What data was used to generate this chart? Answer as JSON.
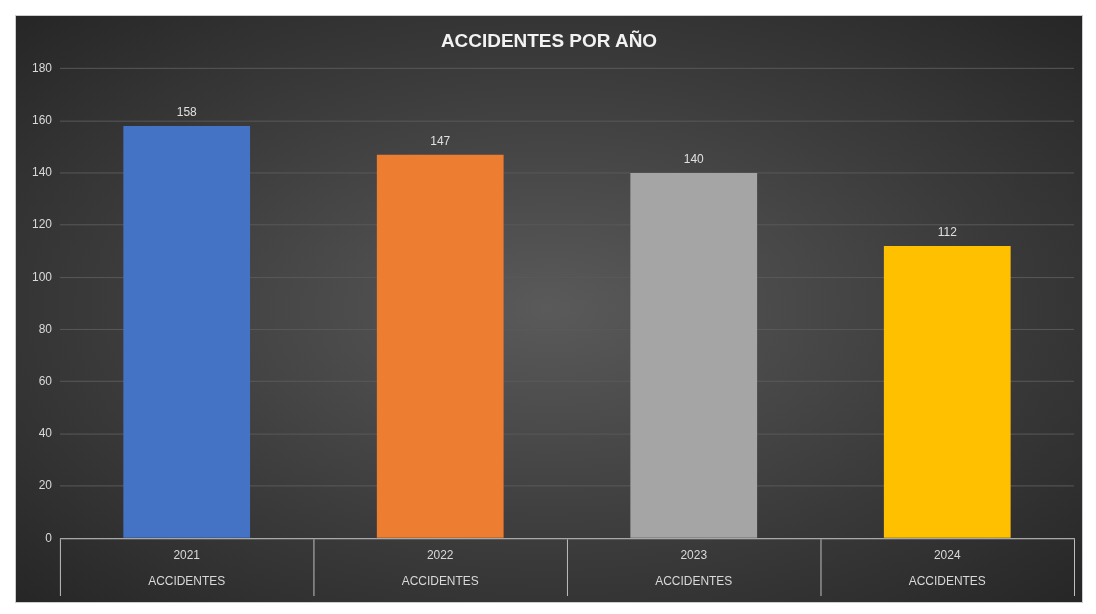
{
  "chart_data": {
    "type": "bar",
    "title": "ACCIDENTES POR AÑO",
    "categories": [
      "2021",
      "2022",
      "2023",
      "2024"
    ],
    "series": [
      {
        "name": "ACCIDENTES",
        "colors": [
          "#4472c4",
          "#ed7d31",
          "#a5a5a5",
          "#ffc000"
        ],
        "values": [
          158,
          147,
          140,
          112
        ]
      }
    ],
    "ylim": [
      0,
      180
    ],
    "yticks": [
      0,
      20,
      40,
      60,
      80,
      100,
      120,
      140,
      160,
      180
    ],
    "grid": "y",
    "data_labels": true,
    "legend": false
  }
}
